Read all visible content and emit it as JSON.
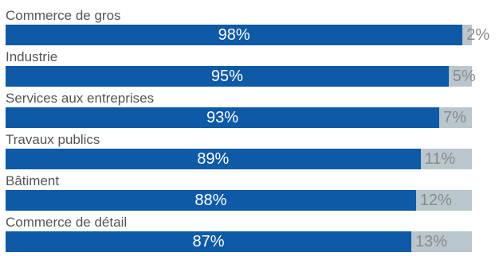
{
  "chart_data": {
    "type": "bar",
    "orientation": "horizontal",
    "stacked": true,
    "categories": [
      "Commerce de gros",
      "Industrie",
      "Services aux entreprises",
      "Travaux publics",
      "Bâtiment",
      "Commerce de détail"
    ],
    "series": [
      {
        "values": [
          98,
          95,
          93,
          89,
          88,
          87
        ],
        "labels": [
          "98%",
          "95%",
          "93%",
          "89%",
          "88%",
          "87%"
        ],
        "color": "#0f5aa6"
      },
      {
        "values": [
          2,
          5,
          7,
          11,
          12,
          13
        ],
        "labels": [
          "2%",
          "5%",
          "7%",
          "11%",
          "12%",
          "13%"
        ],
        "color": "#b9c7cd"
      }
    ],
    "xlim": [
      0,
      100
    ],
    "grid": false,
    "legend": "none"
  },
  "colors": {
    "primary_bar": "#0f5aa6",
    "secondary_bar": "#b9c7cd",
    "label_text": "#555555",
    "primary_value_text": "#ffffff",
    "secondary_value_text": "#8a8a8a"
  }
}
